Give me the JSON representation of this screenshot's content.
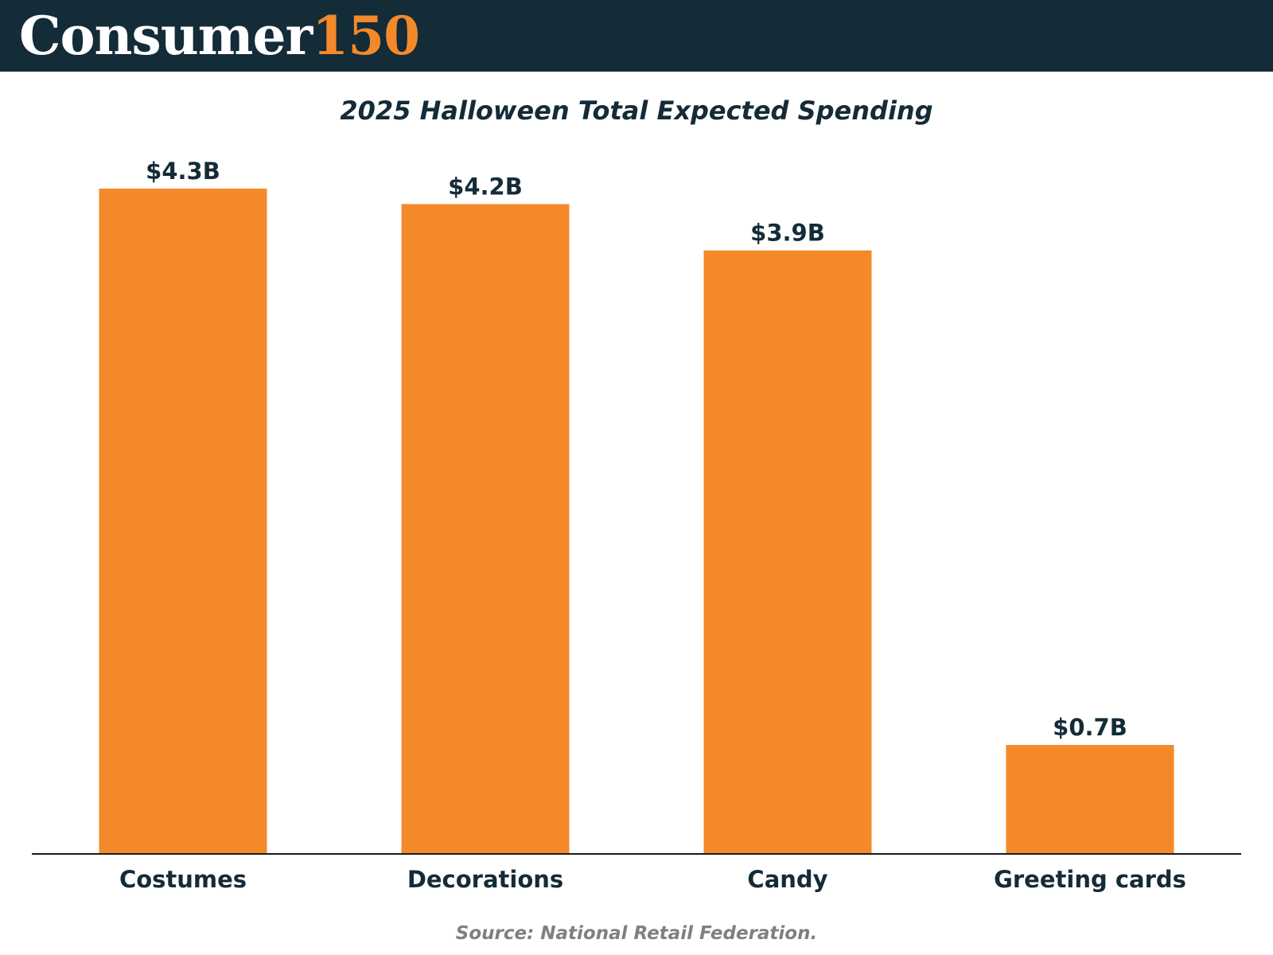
{
  "header": {
    "logo_word": "Consumer",
    "logo_number": "150"
  },
  "chart_data": {
    "type": "bar",
    "title": "2025 Halloween Total Expected Spending",
    "categories": [
      "Costumes",
      "Decorations",
      "Candy",
      "Greeting cards"
    ],
    "values": [
      4.3,
      4.2,
      3.9,
      0.7
    ],
    "value_labels": [
      "$4.3B",
      "$4.2B",
      "$3.9B",
      "$0.7B"
    ],
    "xlabel": "",
    "ylabel": "",
    "ylim": [
      0,
      4.3
    ],
    "grid": false,
    "legend": "none",
    "bar_color": "#f4892a",
    "text_color": "#142b38"
  },
  "footer": {
    "source": "Source: National Retail Federation."
  }
}
